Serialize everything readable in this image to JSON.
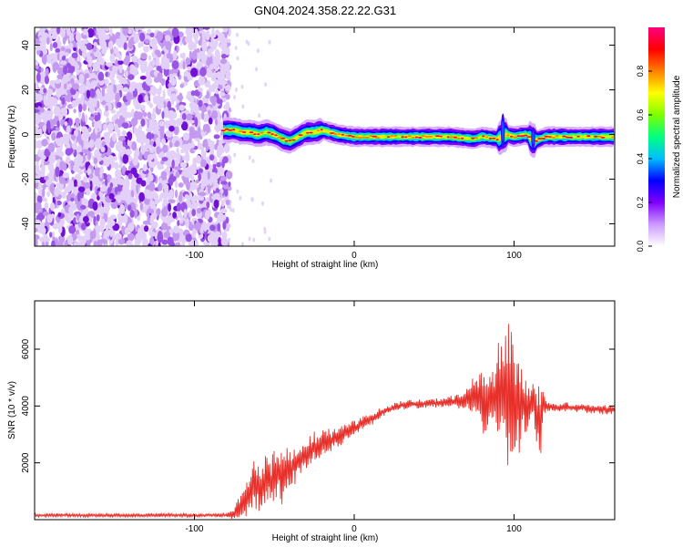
{
  "figure": {
    "title": "GN04.2024.358.22.22.G31"
  },
  "chart_data": [
    {
      "type": "heatmap",
      "title": "GN04.2024.358.22.22.G31",
      "xlabel": "Height of straight line (km)",
      "ylabel": "Frequency (Hz)",
      "xlim": [
        -200,
        163
      ],
      "ylim": [
        -50,
        48
      ],
      "xticks": [
        -100,
        0,
        100
      ],
      "yticks": [
        -40,
        -20,
        0,
        20,
        40
      ],
      "grid": false,
      "noise_region_x": [
        -200,
        -80
      ],
      "signal_band_center": [
        [
          -82,
          2
        ],
        [
          -75,
          2
        ],
        [
          -70,
          1
        ],
        [
          -65,
          1
        ],
        [
          -60,
          0
        ],
        [
          -55,
          1
        ],
        [
          -50,
          0
        ],
        [
          -45,
          -2
        ],
        [
          -40,
          -3
        ],
        [
          -35,
          -1
        ],
        [
          -30,
          1
        ],
        [
          -25,
          1
        ],
        [
          -20,
          2
        ],
        [
          -10,
          0
        ],
        [
          0,
          -1
        ],
        [
          10,
          -1
        ],
        [
          30,
          -1
        ],
        [
          60,
          -1
        ],
        [
          75,
          -2
        ],
        [
          80,
          -1
        ],
        [
          90,
          -2
        ],
        [
          95,
          0
        ],
        [
          100,
          -1
        ],
        [
          108,
          0
        ],
        [
          112,
          -3
        ],
        [
          120,
          -1
        ],
        [
          140,
          -1
        ],
        [
          163,
          -1
        ]
      ],
      "colorbar": {
        "label": "Normalized spectral amplitude",
        "ticks": [
          0.0,
          0.2,
          0.4,
          0.6,
          0.8
        ],
        "range": [
          0,
          1
        ],
        "colors": [
          "#ffffff",
          "#cc99ff",
          "#7f00ff",
          "#0000ff",
          "#00bfff",
          "#00ff80",
          "#80ff00",
          "#ffff00",
          "#ff8000",
          "#ff0000",
          "#ff0080"
        ]
      }
    },
    {
      "type": "line",
      "xlabel": "Height of straight line (km)",
      "ylabel": "SNR (10 * v/v)",
      "xlim": [
        -200,
        163
      ],
      "ylim": [
        0,
        7700
      ],
      "xticks": [
        -100,
        0,
        100
      ],
      "yticks": [
        2000,
        4000,
        6000
      ],
      "grid": false,
      "series": [
        {
          "color": "#e8302a",
          "x": [
            -200,
            -180,
            -160,
            -140,
            -120,
            -100,
            -90,
            -80,
            -75,
            -70,
            -66,
            -62,
            -58,
            -55,
            -52,
            -48,
            -45,
            -42,
            -38,
            -35,
            -30,
            -25,
            -20,
            -15,
            -10,
            -5,
            0,
            5,
            10,
            15,
            20,
            25,
            30,
            35,
            40,
            50,
            60,
            70,
            75,
            80,
            85,
            90,
            93,
            96,
            98,
            100,
            103,
            106,
            110,
            113,
            116,
            118,
            120,
            130,
            140,
            150,
            163
          ],
          "values": [
            150,
            160,
            150,
            150,
            160,
            150,
            150,
            160,
            220,
            500,
            900,
            1300,
            1100,
            1500,
            1300,
            1700,
            1400,
            1900,
            1900,
            2100,
            2300,
            2500,
            2700,
            2800,
            2900,
            3100,
            3200,
            3400,
            3500,
            3700,
            3850,
            3950,
            4000,
            4050,
            4050,
            4100,
            4150,
            4200,
            4350,
            4300,
            4450,
            4400,
            4500,
            4300,
            4500,
            4100,
            4000,
            4100,
            4000,
            4100,
            3300,
            4100,
            4000,
            3950,
            3950,
            3900,
            3850
          ],
          "variability": [
            60,
            60,
            60,
            60,
            60,
            60,
            60,
            60,
            200,
            500,
            700,
            800,
            900,
            900,
            900,
            900,
            900,
            800,
            700,
            650,
            600,
            500,
            450,
            400,
            350,
            300,
            250,
            220,
            200,
            180,
            150,
            150,
            150,
            150,
            150,
            150,
            200,
            300,
            700,
            1100,
            1300,
            1600,
            2000,
            2600,
            2600,
            2000,
            1500,
            1000,
            600,
            800,
            1500,
            600,
            200,
            150,
            150,
            150,
            150
          ]
        }
      ]
    }
  ]
}
